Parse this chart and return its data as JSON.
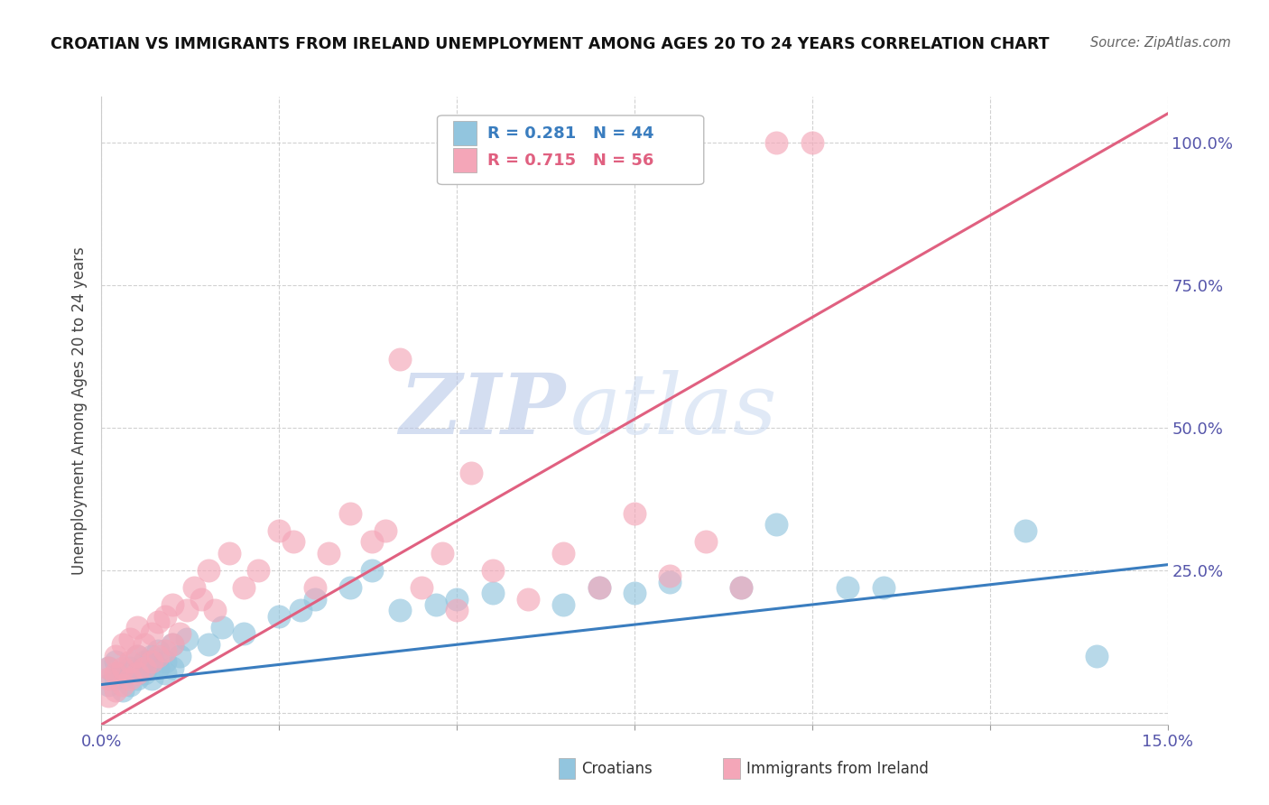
{
  "title": "CROATIAN VS IMMIGRANTS FROM IRELAND UNEMPLOYMENT AMONG AGES 20 TO 24 YEARS CORRELATION CHART",
  "source": "Source: ZipAtlas.com",
  "ylabel": "Unemployment Among Ages 20 to 24 years",
  "x_min": 0.0,
  "x_max": 0.15,
  "y_min": -0.02,
  "y_max": 1.08,
  "x_ticks": [
    0.0,
    0.025,
    0.05,
    0.075,
    0.1,
    0.125,
    0.15
  ],
  "x_tick_labels": [
    "0.0%",
    "",
    "",
    "",
    "",
    "",
    "15.0%"
  ],
  "y_ticks": [
    0.0,
    0.25,
    0.5,
    0.75,
    1.0
  ],
  "y_tick_labels": [
    "",
    "25.0%",
    "50.0%",
    "75.0%",
    "100.0%"
  ],
  "croatian_color": "#92c5de",
  "ireland_color": "#f4a6b8",
  "line_color_croatian": "#3a7dbf",
  "line_color_ireland": "#e06080",
  "legend_R_croatian": "R = 0.281",
  "legend_N_croatian": "N = 44",
  "legend_R_ireland": "R = 0.715",
  "legend_N_ireland": "N = 56",
  "watermark_zip": "ZIP",
  "watermark_atlas": "atlas",
  "background_color": "#ffffff",
  "grid_color": "#cccccc",
  "cr_line_x0": 0.0,
  "cr_line_y0": 0.05,
  "cr_line_x1": 0.15,
  "cr_line_y1": 0.26,
  "ir_line_x0": 0.0,
  "ir_line_y0": -0.02,
  "ir_line_x1": 0.15,
  "ir_line_y1": 1.05,
  "croatian_scatter_x": [
    0.001,
    0.001,
    0.002,
    0.002,
    0.003,
    0.003,
    0.004,
    0.004,
    0.005,
    0.005,
    0.006,
    0.006,
    0.007,
    0.007,
    0.008,
    0.008,
    0.009,
    0.009,
    0.01,
    0.01,
    0.011,
    0.012,
    0.015,
    0.017,
    0.02,
    0.025,
    0.028,
    0.03,
    0.035,
    0.038,
    0.042,
    0.047,
    0.05,
    0.055,
    0.065,
    0.07,
    0.075,
    0.08,
    0.09,
    0.095,
    0.105,
    0.11,
    0.13,
    0.14
  ],
  "croatian_scatter_y": [
    0.05,
    0.08,
    0.06,
    0.09,
    0.04,
    0.07,
    0.05,
    0.08,
    0.06,
    0.1,
    0.07,
    0.09,
    0.06,
    0.1,
    0.08,
    0.11,
    0.07,
    0.09,
    0.08,
    0.12,
    0.1,
    0.13,
    0.12,
    0.15,
    0.14,
    0.17,
    0.18,
    0.2,
    0.22,
    0.25,
    0.18,
    0.19,
    0.2,
    0.21,
    0.19,
    0.22,
    0.21,
    0.23,
    0.22,
    0.33,
    0.22,
    0.22,
    0.32,
    0.1
  ],
  "ireland_scatter_x": [
    0.001,
    0.001,
    0.001,
    0.002,
    0.002,
    0.002,
    0.003,
    0.003,
    0.003,
    0.004,
    0.004,
    0.004,
    0.005,
    0.005,
    0.005,
    0.006,
    0.006,
    0.007,
    0.007,
    0.008,
    0.008,
    0.009,
    0.009,
    0.01,
    0.01,
    0.011,
    0.012,
    0.013,
    0.014,
    0.015,
    0.016,
    0.018,
    0.02,
    0.022,
    0.025,
    0.027,
    0.03,
    0.032,
    0.035,
    0.038,
    0.04,
    0.042,
    0.045,
    0.048,
    0.05,
    0.052,
    0.055,
    0.06,
    0.065,
    0.07,
    0.075,
    0.08,
    0.085,
    0.09,
    0.095,
    0.1
  ],
  "ireland_scatter_y": [
    0.03,
    0.06,
    0.08,
    0.04,
    0.07,
    0.1,
    0.05,
    0.08,
    0.12,
    0.06,
    0.09,
    0.13,
    0.07,
    0.1,
    0.15,
    0.08,
    0.12,
    0.09,
    0.14,
    0.1,
    0.16,
    0.11,
    0.17,
    0.12,
    0.19,
    0.14,
    0.18,
    0.22,
    0.2,
    0.25,
    0.18,
    0.28,
    0.22,
    0.25,
    0.32,
    0.3,
    0.22,
    0.28,
    0.35,
    0.3,
    0.32,
    0.62,
    0.22,
    0.28,
    0.18,
    0.42,
    0.25,
    0.2,
    0.28,
    0.22,
    0.35,
    0.24,
    0.3,
    0.22,
    1.0,
    1.0
  ]
}
